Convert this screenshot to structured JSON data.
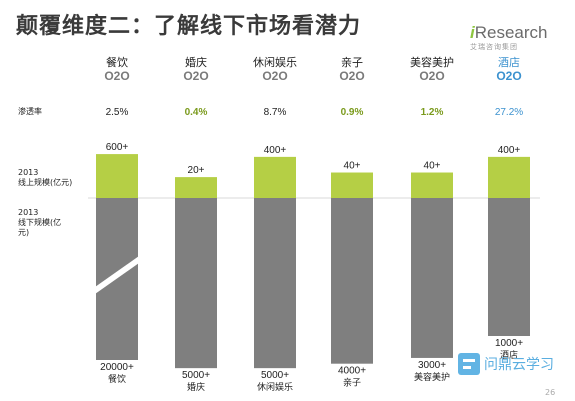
{
  "header": {
    "title": "颠覆维度二：了解线下市场看潜力"
  },
  "brand": {
    "name_prefix": "i",
    "name_rest": "Research",
    "subtitle": "艾瑞咨询集团"
  },
  "row_labels": {
    "penetration": "渗透率",
    "online_year": "2013",
    "online": "线上规模(亿元)",
    "offline_year": "2013",
    "offline": "线下规模(亿",
    "offline_cont": "元)"
  },
  "watermark": {
    "text": "问鼎云学习"
  },
  "page_number": "26",
  "chart_data": {
    "type": "bar",
    "categories": [
      "餐饮O2O",
      "婚庆O2O",
      "休闲娱乐O2O",
      "亲子O2O",
      "美容美护O2O",
      "酒店O2O"
    ],
    "category_labels": [
      {
        "name": "餐饮",
        "sub": "O2O"
      },
      {
        "name": "婚庆",
        "sub": "O2O"
      },
      {
        "name": "休闲娱乐",
        "sub": "O2O"
      },
      {
        "name": "亲子",
        "sub": "O2O"
      },
      {
        "name": "美容美护",
        "sub": "O2O"
      },
      {
        "name": "酒店",
        "sub": "O2O"
      }
    ],
    "offline_names": [
      "餐饮",
      "婚庆",
      "休闲娱乐",
      "亲子",
      "美容美护",
      "酒店"
    ],
    "penetration": [
      "2.5%",
      "0.4%",
      "8.7%",
      "0.9%",
      "1.2%",
      "27.2%"
    ],
    "series": [
      {
        "name": "线上规模(亿元)",
        "values": [
          600,
          20,
          400,
          40,
          40,
          400
        ],
        "labels": [
          "600+",
          "20+",
          "400+",
          "40+",
          "40+",
          "400+"
        ],
        "color": "#b5cf45"
      },
      {
        "name": "线下规模(亿元)",
        "values": [
          20000,
          5000,
          5000,
          4000,
          3000,
          1000
        ],
        "labels": [
          "20000+",
          "5000+",
          "5000+",
          "4000+",
          "3000+",
          "1000+"
        ],
        "color": "#7f7f7f"
      }
    ],
    "axis_break": {
      "category": "餐饮"
    },
    "colors": {
      "online": "#b5cf45",
      "offline": "#7f7f7f",
      "accent": "#3c92cf",
      "low_rate": "#7a9a1c"
    }
  }
}
